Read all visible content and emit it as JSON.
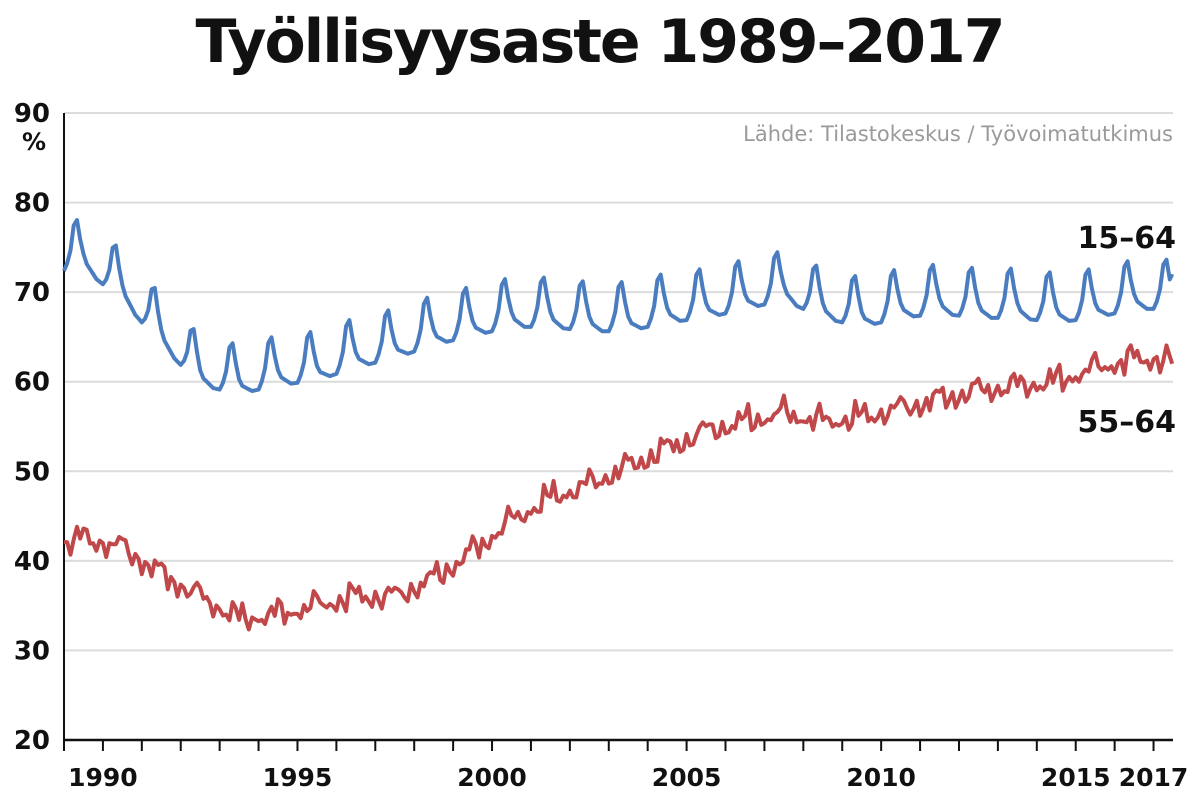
{
  "chart_data": {
    "type": "line",
    "title": "Työllisyysaste 1989–2017",
    "ylabel": "%",
    "source": "Lähde: Tilastokeskus / Työvoimatutkimus",
    "ylim": [
      20,
      90
    ],
    "yticks": [
      20,
      30,
      40,
      50,
      60,
      70,
      80,
      90
    ],
    "xlim": [
      1989.0,
      2017.5
    ],
    "xtick_labels": [
      {
        "x": 1990,
        "label": "1990"
      },
      {
        "x": 1995,
        "label": "1995"
      },
      {
        "x": 2000,
        "label": "2000"
      },
      {
        "x": 2005,
        "label": "2005"
      },
      {
        "x": 2010,
        "label": "2010"
      },
      {
        "x": 2015,
        "label": "2015"
      },
      {
        "x": 2017,
        "label": "2017"
      }
    ],
    "grid": true,
    "series": [
      {
        "name": "15–64",
        "color": "#4a7dbf",
        "annual": [
          [
            1989,
            73.5
          ],
          [
            1990,
            74.0
          ],
          [
            1991,
            70.5
          ],
          [
            1992,
            65.5
          ],
          [
            1993,
            61.0
          ],
          [
            1994,
            60.0
          ],
          [
            1995,
            61.0
          ],
          [
            1996,
            61.5
          ],
          [
            1997,
            63.0
          ],
          [
            1998,
            64.0
          ],
          [
            1999,
            65.5
          ],
          [
            2000,
            66.5
          ],
          [
            2001,
            67.5
          ],
          [
            2002,
            67.5
          ],
          [
            2003,
            67.0
          ],
          [
            2004,
            67.0
          ],
          [
            2005,
            68.0
          ],
          [
            2006,
            68.5
          ],
          [
            2007,
            69.5
          ],
          [
            2008,
            70.5
          ],
          [
            2009,
            68.5
          ],
          [
            2010,
            67.5
          ],
          [
            2011,
            68.5
          ],
          [
            2012,
            69.0
          ],
          [
            2013,
            68.5
          ],
          [
            2014,
            68.5
          ],
          [
            2015,
            68.0
          ],
          [
            2016,
            68.5
          ],
          [
            2017,
            69.5
          ]
        ],
        "seasonal_peak": 5.5,
        "end_value": 72.0
      },
      {
        "name": "55–64",
        "color": "#c0484a",
        "annual": [
          [
            1989,
            41.5
          ],
          [
            1990,
            42.5
          ],
          [
            1991,
            41.5
          ],
          [
            1992,
            38.5
          ],
          [
            1993,
            36.0
          ],
          [
            1994,
            33.5
          ],
          [
            1995,
            34.0
          ],
          [
            1996,
            35.0
          ],
          [
            1997,
            36.0
          ],
          [
            1998,
            36.0
          ],
          [
            1999,
            38.0
          ],
          [
            2000,
            41.0
          ],
          [
            2001,
            44.5
          ],
          [
            2002,
            47.0
          ],
          [
            2003,
            48.5
          ],
          [
            2004,
            50.5
          ],
          [
            2005,
            52.5
          ],
          [
            2006,
            54.5
          ],
          [
            2007,
            55.5
          ],
          [
            2008,
            56.5
          ],
          [
            2009,
            55.5
          ],
          [
            2010,
            56.0
          ],
          [
            2011,
            57.0
          ],
          [
            2012,
            58.0
          ],
          [
            2013,
            59.0
          ],
          [
            2014,
            59.5
          ],
          [
            2015,
            60.0
          ],
          [
            2016,
            61.5
          ],
          [
            2017,
            62.5
          ]
        ],
        "seasonal_peak": 1.3,
        "end_value": 62.0
      }
    ]
  }
}
